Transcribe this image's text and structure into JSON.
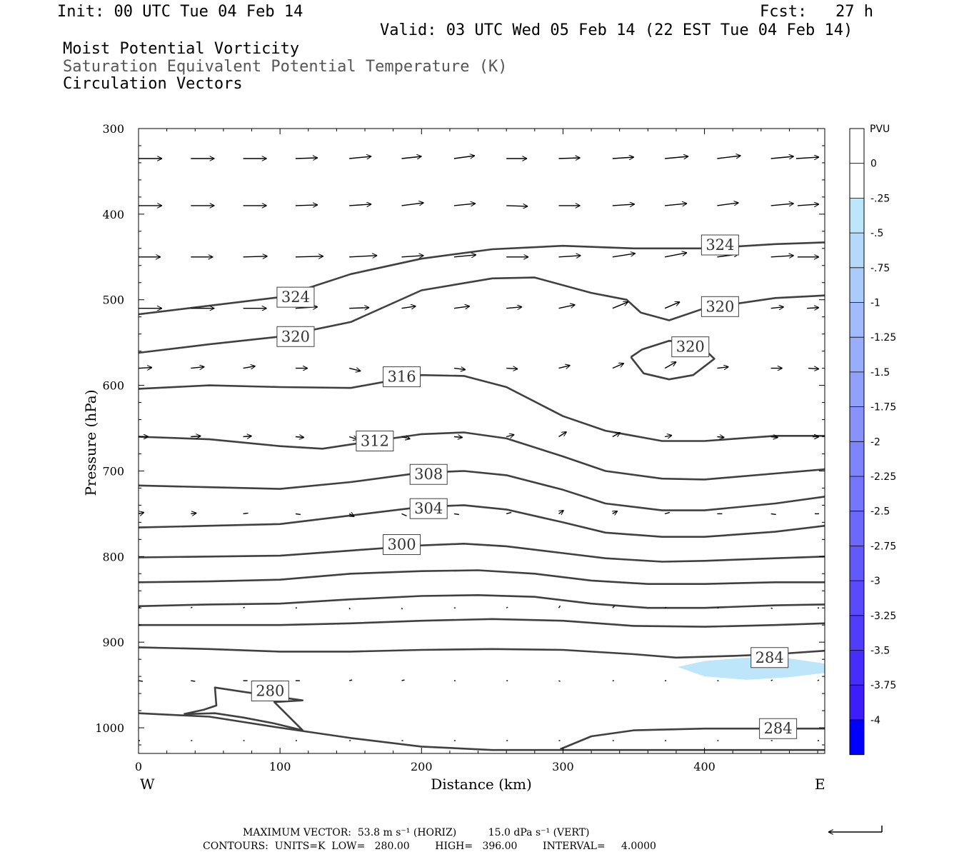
{
  "header": {
    "init": "Init: 00 UTC Tue 04 Feb 14",
    "fcst": "Fcst:   27 h",
    "valid": "Valid: 03 UTC Wed 05 Feb 14 (22 EST Tue 04 Feb 14)",
    "fields": [
      "Moist Potential Vorticity",
      "Saturation Equivalent Potential Temperature (K)",
      "Circulation Vectors"
    ]
  },
  "footer": {
    "max_vector": "MAXIMUM VECTOR:  53.8 m s⁻¹ (HORIZ)          15.0 dPa s⁻¹ (VERT)",
    "contours": "CONTOURS:  UNITS=K  LOW=   280.00        HIGH=   396.00        INTERVAL=     4.0000"
  },
  "colors": {
    "contour": "#404040",
    "mpv_fill": "#bde6fb",
    "arrow": "#000000"
  },
  "chart_data": {
    "type": "line",
    "xlabel": "Distance (km)",
    "ylabel": "Pressure (hPa)",
    "x_ticks": [
      0,
      100,
      200,
      300,
      400
    ],
    "y_ticks": [
      300,
      400,
      500,
      600,
      700,
      800,
      900,
      1000
    ],
    "x_end_labels": [
      "W",
      "E"
    ],
    "xlim": [
      0,
      485
    ],
    "ylim": [
      300,
      1030
    ],
    "y_reversed": true,
    "contour_labels": [
      {
        "text": "324",
        "x": 111,
        "p": 497
      },
      {
        "text": "324",
        "x": 411,
        "p": 436
      },
      {
        "text": "320",
        "x": 111,
        "p": 543
      },
      {
        "text": "320",
        "x": 411,
        "p": 508
      },
      {
        "text": "320",
        "x": 390,
        "p": 555
      },
      {
        "text": "316",
        "x": 186,
        "p": 590
      },
      {
        "text": "312",
        "x": 167,
        "p": 665
      },
      {
        "text": "308",
        "x": 205,
        "p": 704
      },
      {
        "text": "304",
        "x": 205,
        "p": 744
      },
      {
        "text": "300",
        "x": 186,
        "p": 786
      },
      {
        "text": "284",
        "x": 446,
        "p": 918
      },
      {
        "text": "284",
        "x": 452,
        "p": 1001
      },
      {
        "text": "280",
        "x": 93,
        "p": 957
      }
    ],
    "isentropes": [
      {
        "name": "324",
        "x": [
          0,
          50,
          100,
          150,
          200,
          250,
          300,
          350,
          400,
          450,
          485
        ],
        "p": [
          517,
          507,
          497,
          470,
          452,
          441,
          437,
          440,
          440,
          435,
          433
        ]
      },
      {
        "name": "320",
        "x": [
          0,
          50,
          100,
          150,
          200,
          250,
          280,
          320,
          345,
          355,
          375,
          400,
          450,
          485
        ],
        "p": [
          562,
          552,
          543,
          526,
          489,
          475,
          474,
          492,
          500,
          515,
          524,
          510,
          498,
          495
        ]
      },
      {
        "name": "316",
        "x": [
          0,
          50,
          100,
          150,
          200,
          230,
          260,
          300,
          330,
          370,
          400,
          450,
          485
        ],
        "p": [
          604,
          600,
          602,
          603,
          588,
          589,
          602,
          636,
          653,
          665,
          665,
          659,
          659
        ]
      },
      {
        "name": "312",
        "x": [
          0,
          50,
          100,
          130,
          150,
          200,
          230,
          260,
          300,
          330,
          370,
          400,
          450,
          485
        ],
        "p": [
          660,
          663,
          671,
          674,
          669,
          657,
          655,
          662,
          683,
          700,
          709,
          710,
          703,
          698
        ]
      },
      {
        "name": "308",
        "x": [
          0,
          50,
          100,
          150,
          200,
          230,
          260,
          300,
          330,
          370,
          400,
          450,
          485
        ],
        "p": [
          717,
          719,
          721,
          713,
          702,
          700,
          705,
          722,
          738,
          746,
          746,
          738,
          730
        ]
      },
      {
        "name": "304",
        "x": [
          0,
          50,
          100,
          150,
          200,
          230,
          260,
          300,
          330,
          370,
          400,
          450,
          485
        ],
        "p": [
          766,
          764,
          762,
          752,
          742,
          740,
          745,
          760,
          772,
          777,
          777,
          771,
          764
        ]
      },
      {
        "name": "300",
        "x": [
          0,
          50,
          100,
          150,
          200,
          230,
          260,
          300,
          330,
          370,
          400,
          450,
          485
        ],
        "p": [
          801,
          800,
          799,
          793,
          787,
          785,
          788,
          796,
          802,
          806,
          805,
          802,
          800
        ]
      },
      {
        "name": "296",
        "x": [
          0,
          50,
          100,
          150,
          200,
          240,
          280,
          320,
          360,
          400,
          450,
          485
        ],
        "p": [
          830,
          829,
          827,
          820,
          817,
          816,
          820,
          828,
          832,
          832,
          830,
          830
        ]
      },
      {
        "name": "292",
        "x": [
          0,
          50,
          100,
          150,
          200,
          240,
          280,
          320,
          360,
          400,
          450,
          485
        ],
        "p": [
          858,
          856,
          855,
          850,
          846,
          845,
          847,
          855,
          860,
          860,
          857,
          856
        ]
      },
      {
        "name": "288",
        "x": [
          0,
          50,
          100,
          150,
          200,
          250,
          300,
          350,
          400,
          450,
          485
        ],
        "p": [
          880,
          880,
          880,
          878,
          875,
          873,
          875,
          881,
          882,
          880,
          878
        ]
      },
      {
        "name": "284",
        "x": [
          0,
          50,
          100,
          150,
          200,
          250,
          300,
          350,
          380,
          420,
          450,
          485
        ],
        "p": [
          906,
          908,
          911,
          911,
          909,
          908,
          909,
          914,
          918,
          916,
          914,
          910
        ]
      },
      {
        "name": "284",
        "x": [
          298,
          320,
          350,
          400,
          450,
          485
        ],
        "p": [
          1025,
          1010,
          1003,
          1001,
          1001,
          1001
        ]
      },
      {
        "name": "280",
        "x": [
          0,
          50,
          100,
          150,
          200,
          250,
          300,
          400,
          485
        ],
        "p": [
          983,
          987,
          1000,
          1012,
          1022,
          1026,
          1026,
          1026,
          1026
        ]
      },
      {
        "name": "280",
        "x": [
          32,
          46,
          55,
          54,
          74,
          116,
          96,
          116,
          96,
          74,
          54,
          32
        ],
        "p": [
          984,
          979,
          974,
          953,
          958,
          968,
          970,
          1003,
          995,
          988,
          983,
          984
        ]
      },
      {
        "name": "320",
        "x": [
          348,
          356,
          375,
          395,
          407,
          392,
          375,
          357,
          348
        ],
        "p": [
          567,
          558,
          548,
          550,
          569,
          588,
          593,
          586,
          567
        ]
      }
    ],
    "mpv_shading": [
      {
        "level": -0.25,
        "x": [
          381,
          400,
          430,
          460,
          485,
          485,
          460,
          430,
          400,
          381
        ],
        "p": [
          929,
          922,
          918,
          919,
          925,
          936,
          941,
          944,
          940,
          929
        ]
      }
    ],
    "vectors": {
      "x": [
        0,
        37,
        74,
        111,
        149,
        186,
        223,
        260,
        297,
        335,
        372,
        409,
        447,
        485
      ],
      "rows": [
        {
          "p": 335,
          "u": [
            33,
            33,
            33,
            31,
            31,
            28,
            29,
            29,
            30,
            30,
            33,
            33,
            32,
            32
          ],
          "w": [
            0,
            0,
            0,
            1,
            3,
            3,
            4,
            0,
            1,
            2,
            3,
            4,
            3,
            2
          ]
        },
        {
          "p": 390,
          "u": [
            33,
            33,
            33,
            31,
            31,
            31,
            30,
            30,
            30,
            31,
            31,
            30,
            32,
            30
          ],
          "w": [
            0,
            0,
            0,
            1,
            2,
            4,
            3,
            -1,
            0,
            2,
            3,
            4,
            3,
            2
          ]
        },
        {
          "p": 450,
          "u": [
            31,
            31,
            34,
            39,
            39,
            31,
            31,
            31,
            31,
            32,
            31,
            30,
            32,
            30
          ],
          "w": [
            0,
            0,
            1,
            1,
            2,
            2,
            3,
            0,
            2,
            5,
            6,
            4,
            2,
            0
          ]
        },
        {
          "p": 510,
          "u": [
            33,
            33,
            33,
            31,
            28,
            20,
            22,
            22,
            23,
            22,
            21,
            20,
            18,
            17
          ],
          "w": [
            0,
            0,
            0,
            2,
            1,
            3,
            3,
            2,
            5,
            9,
            9,
            3,
            2,
            1
          ]
        },
        {
          "p": 580,
          "u": [
            19,
            19,
            17,
            17,
            16,
            15,
            16,
            16,
            16,
            16,
            16,
            16,
            16,
            15
          ],
          "w": [
            1,
            2,
            3,
            0,
            -4,
            -4,
            -2,
            -1,
            4,
            7,
            9,
            2,
            0,
            -1
          ]
        },
        {
          "p": 660,
          "u": [
            14,
            14,
            12,
            12,
            12,
            12,
            12,
            11,
            11,
            11,
            10,
            10,
            10,
            9
          ],
          "w": [
            0,
            1,
            1,
            -1,
            -4,
            -3,
            -1,
            3,
            7,
            6,
            2,
            -1,
            -1,
            0
          ]
        },
        {
          "p": 750,
          "u": [
            8,
            8,
            7,
            7,
            7,
            7,
            7,
            7,
            7,
            7,
            7,
            7,
            7,
            6
          ],
          "w": [
            2,
            1,
            1,
            -1,
            -4,
            -3,
            -1,
            2,
            5,
            4,
            2,
            0,
            -1,
            0
          ]
        },
        {
          "p": 860,
          "u": [
            2,
            2,
            2,
            2,
            1,
            1,
            2,
            2,
            2,
            3,
            2,
            2,
            2,
            2
          ],
          "w": [
            1,
            1,
            1,
            0,
            -2,
            -2,
            0,
            1,
            3,
            3,
            1,
            0,
            -1,
            0
          ]
        },
        {
          "p": 945,
          "u": [
            6,
            6,
            6,
            6,
            4,
            4,
            2,
            2,
            2,
            2,
            2,
            2,
            2,
            2
          ],
          "w": [
            -1,
            -1,
            0,
            0,
            1,
            1,
            0,
            0,
            -1,
            0,
            0,
            0,
            1,
            1
          ]
        },
        {
          "p": 1015,
          "u": [
            2,
            2,
            2,
            2,
            2,
            2,
            2,
            2,
            2,
            2,
            2,
            2,
            2,
            2
          ],
          "w": [
            0,
            0,
            0,
            0,
            0,
            0,
            0,
            0,
            0,
            0,
            0,
            0,
            0,
            0
          ]
        }
      ]
    },
    "colorbar": {
      "title": "PVU",
      "levels": [
        "0",
        "-.25",
        "-.5",
        "-.75",
        "-1",
        "-1.25",
        "-1.5",
        "-1.75",
        "-2",
        "-2.25",
        "-2.5",
        "-2.75",
        "-3",
        "-3.25",
        "-3.5",
        "-3.75",
        "-4"
      ],
      "colors": [
        "#ffffff",
        "#ffffff",
        "#bde6fb",
        "#b4d9fb",
        "#abcbfb",
        "#a2bcfb",
        "#99aefb",
        "#90a0fb",
        "#8792fb",
        "#7e84fb",
        "#7476fb",
        "#6b68fb",
        "#6259fb",
        "#594afb",
        "#503cfb",
        "#462dfb",
        "#3d1efb",
        "#0000ff"
      ]
    }
  }
}
